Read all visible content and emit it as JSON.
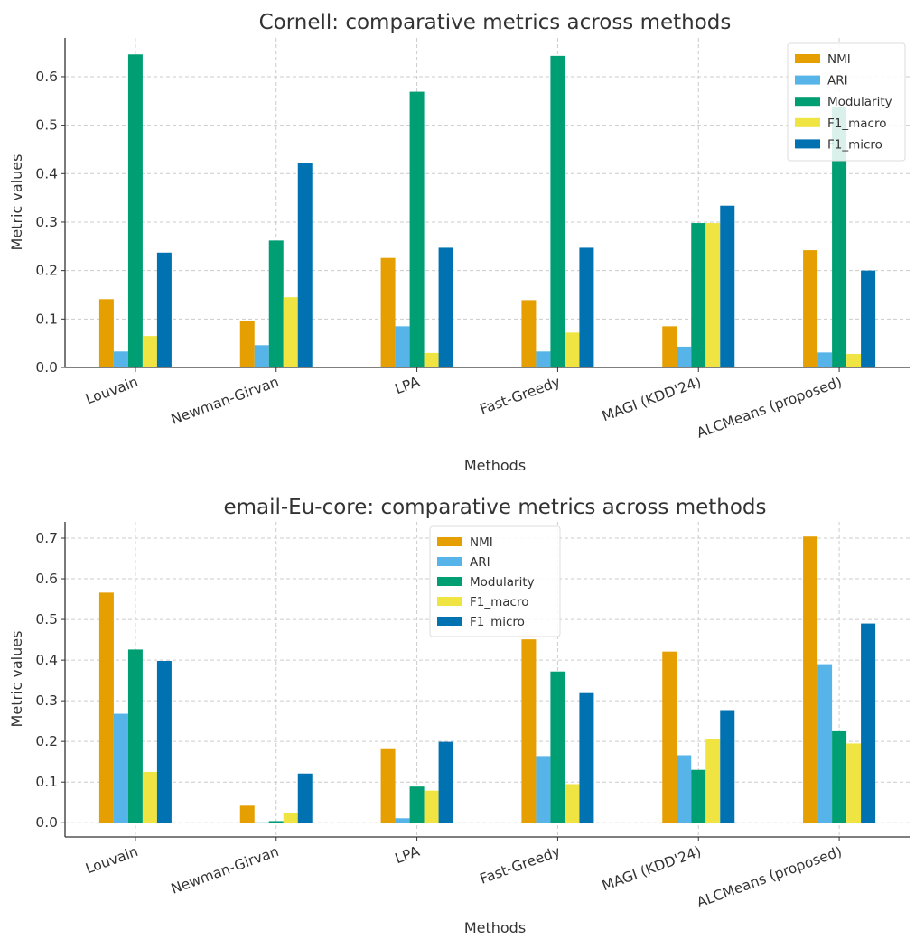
{
  "chart_data": [
    {
      "type": "bar",
      "title": "Cornell: comparative metrics across methods",
      "xlabel": "Methods",
      "ylabel": "Metric values",
      "categories": [
        "Louvain",
        "Newman-Girvan",
        "LPA",
        "Fast-Greedy",
        "MAGI (KDD'24)",
        "ALCMeans (proposed)"
      ],
      "ylim": [
        0,
        0.68
      ],
      "yticks": [
        "0.0",
        "0.1",
        "0.2",
        "0.3",
        "0.4",
        "0.5",
        "0.6"
      ],
      "grid": true,
      "legend_position": "top-right",
      "series": [
        {
          "name": "NMI",
          "color": "#E69F00",
          "values": [
            0.141,
            0.096,
            0.226,
            0.139,
            0.085,
            0.242
          ]
        },
        {
          "name": "ARI",
          "color": "#56B4E9",
          "values": [
            0.033,
            0.046,
            0.085,
            0.033,
            0.043,
            0.031
          ]
        },
        {
          "name": "Modularity",
          "color": "#009E73",
          "values": [
            0.646,
            0.262,
            0.569,
            0.643,
            0.298,
            0.537
          ]
        },
        {
          "name": "F1_macro",
          "color": "#F0E442",
          "values": [
            0.065,
            0.145,
            0.03,
            0.072,
            0.298,
            0.028
          ]
        },
        {
          "name": "F1_micro",
          "color": "#0072B2",
          "values": [
            0.237,
            0.421,
            0.247,
            0.247,
            0.334,
            0.2
          ]
        }
      ]
    },
    {
      "type": "bar",
      "title": "email-Eu-core: comparative metrics across methods",
      "xlabel": "Methods",
      "ylabel": "Metric values",
      "categories": [
        "Louvain",
        "Newman-Girvan",
        "LPA",
        "Fast-Greedy",
        "MAGI (KDD'24)",
        "ALCMeans (proposed)"
      ],
      "ylim": [
        -0.035,
        0.74
      ],
      "yticks": [
        "0.0",
        "0.1",
        "0.2",
        "0.3",
        "0.4",
        "0.5",
        "0.6",
        "0.7"
      ],
      "grid": true,
      "legend_position": "top-center",
      "series": [
        {
          "name": "NMI",
          "color": "#E69F00",
          "values": [
            0.566,
            0.042,
            0.181,
            0.451,
            0.421,
            0.704
          ]
        },
        {
          "name": "ARI",
          "color": "#56B4E9",
          "values": [
            0.268,
            0.001,
            0.011,
            0.164,
            0.166,
            0.39
          ]
        },
        {
          "name": "Modularity",
          "color": "#009E73",
          "values": [
            0.426,
            0.004,
            0.089,
            0.372,
            0.13,
            0.225
          ]
        },
        {
          "name": "F1_macro",
          "color": "#F0E442",
          "values": [
            0.125,
            0.024,
            0.079,
            0.095,
            0.206,
            0.195
          ]
        },
        {
          "name": "F1_micro",
          "color": "#0072B2",
          "values": [
            0.398,
            0.121,
            0.199,
            0.321,
            0.277,
            0.49
          ]
        }
      ]
    }
  ]
}
